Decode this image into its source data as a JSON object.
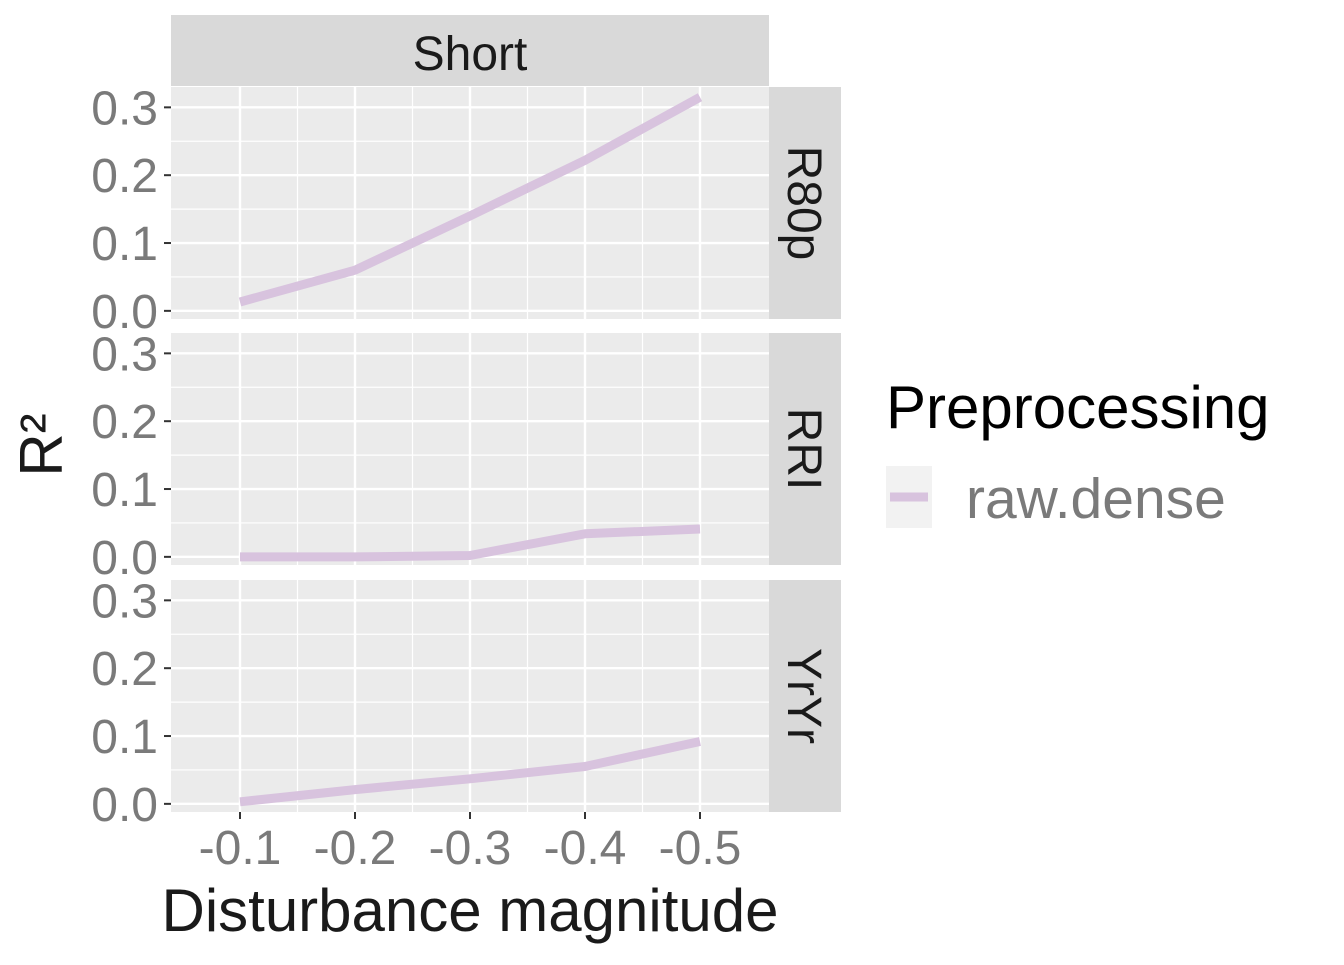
{
  "chart_data": {
    "type": "line",
    "facet_column": "Short",
    "xlabel": "Disturbance magnitude",
    "ylabel": "R²",
    "x_ticks": [
      "-0.1",
      "-0.2",
      "-0.3",
      "-0.4",
      "-0.5"
    ],
    "y_ticks": [
      "0.0",
      "0.1",
      "0.2",
      "0.3"
    ],
    "ylim": [
      -0.012,
      0.33
    ],
    "legend": {
      "title": "Preprocessing",
      "position": "right",
      "items": [
        {
          "name": "raw.dense",
          "color": "#d8c3de"
        }
      ]
    },
    "line_color": "#d8c3de",
    "panels": [
      {
        "strip": "R80p",
        "series": [
          {
            "name": "raw.dense",
            "x": [
              -0.1,
              -0.2,
              -0.3,
              -0.4,
              -0.5
            ],
            "y": [
              0.013,
              0.06,
              0.14,
              0.222,
              0.315
            ]
          }
        ]
      },
      {
        "strip": "RRI",
        "series": [
          {
            "name": "raw.dense",
            "x": [
              -0.1,
              -0.2,
              -0.3,
              -0.4,
              -0.5
            ],
            "y": [
              0.0,
              0.0,
              0.002,
              0.034,
              0.041
            ]
          }
        ]
      },
      {
        "strip": "YrYr",
        "series": [
          {
            "name": "raw.dense",
            "x": [
              -0.1,
              -0.2,
              -0.3,
              -0.4,
              -0.5
            ],
            "y": [
              0.003,
              0.021,
              0.037,
              0.055,
              0.092
            ]
          }
        ]
      }
    ]
  }
}
